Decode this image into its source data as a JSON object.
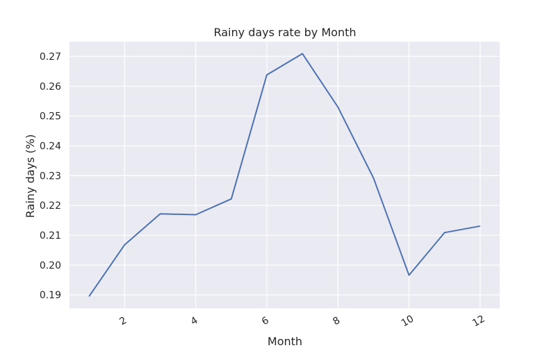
{
  "chart_data": {
    "type": "line",
    "title": "Rainy days rate by Month",
    "xlabel": "Month",
    "ylabel": "Rainy days (%)",
    "x": [
      1,
      2,
      3,
      4,
      5,
      6,
      7,
      8,
      9,
      10,
      11,
      12
    ],
    "series": [
      {
        "values": [
          0.1895,
          0.2068,
          0.2172,
          0.2169,
          0.2222,
          0.2638,
          0.2709,
          0.253,
          0.2292,
          0.1966,
          0.2109,
          0.2131
        ]
      }
    ],
    "xticks": [
      2,
      4,
      6,
      8,
      10,
      12
    ],
    "yticks": [
      0.19,
      0.2,
      0.21,
      0.22,
      0.23,
      0.24,
      0.25,
      0.26,
      0.27
    ],
    "ytick_labels": [
      "0.19",
      "0.20",
      "0.21",
      "0.22",
      "0.23",
      "0.24",
      "0.25",
      "0.26",
      "0.27"
    ],
    "xlim": [
      0.45,
      12.55
    ],
    "ylim": [
      0.1855,
      0.2749
    ],
    "grid": true,
    "legend": "none",
    "colors": {
      "background": "#eaeaf2",
      "grid": "#ffffff",
      "line": "#4c72b0"
    }
  }
}
